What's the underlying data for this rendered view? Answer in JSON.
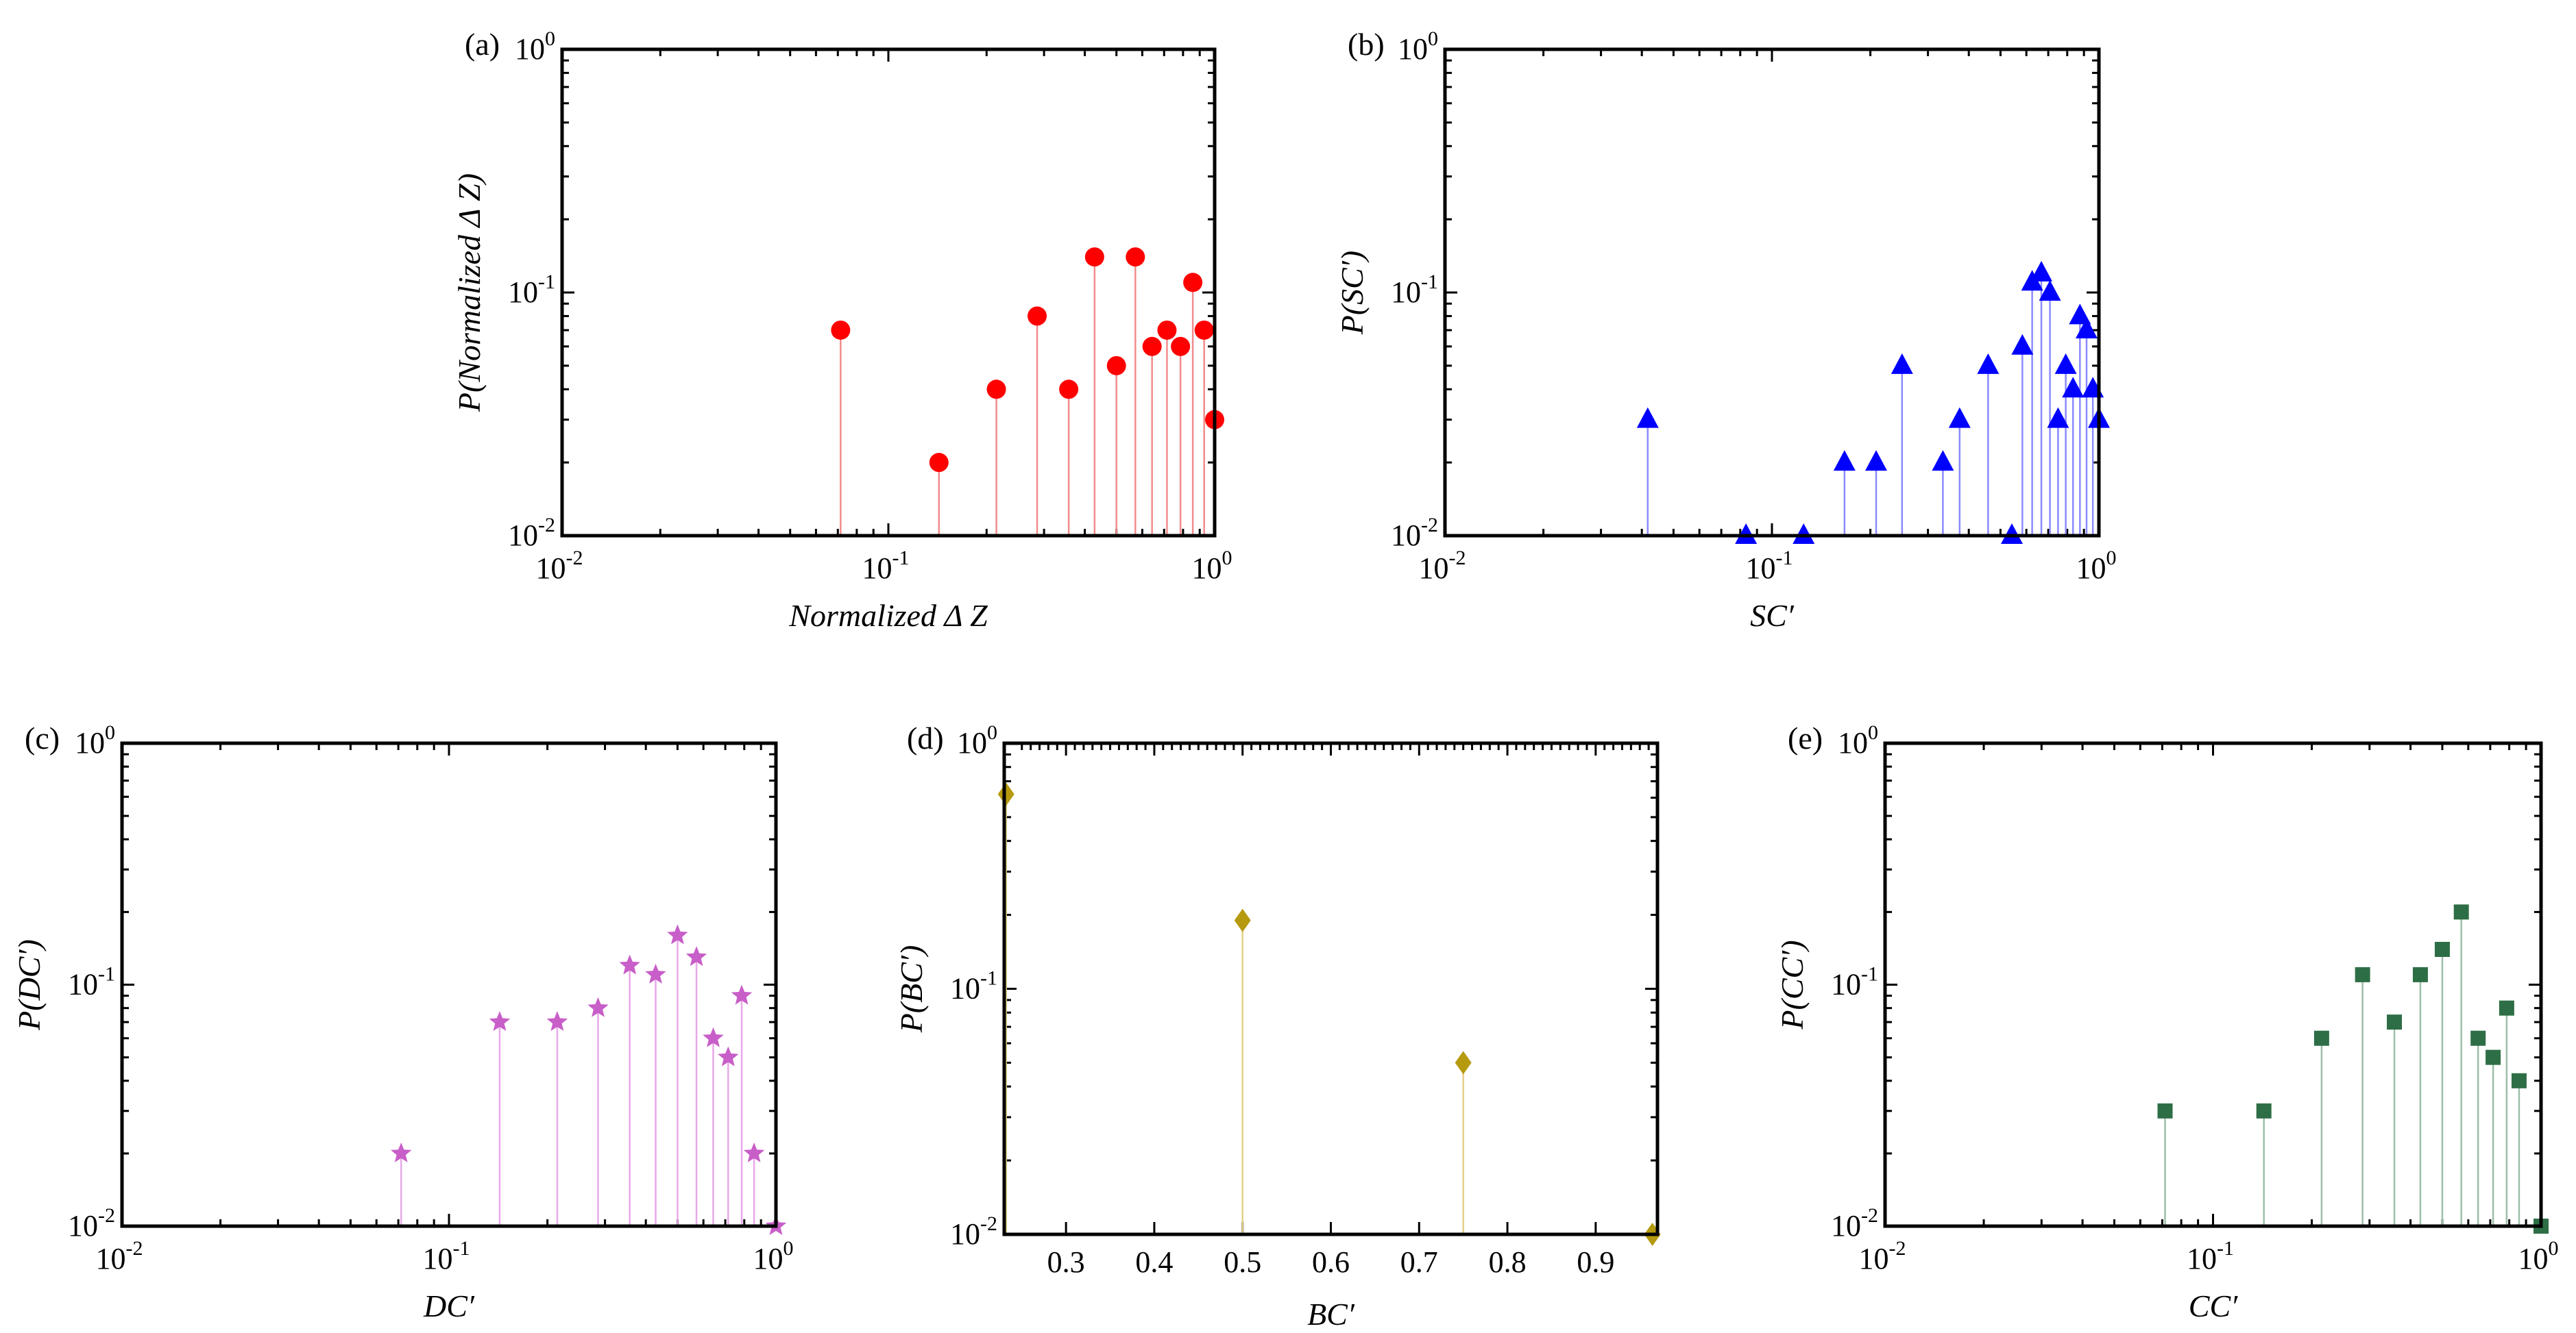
{
  "chart_data": [
    {
      "panel": "(a)",
      "type": "scatter",
      "style": "stem",
      "xscale": "log",
      "yscale": "log",
      "xlim": [
        0.01,
        1
      ],
      "ylim": [
        0.01,
        1
      ],
      "xlabel": "Normalized Δ Z",
      "ylabel": "P(Normalized Δ Z)",
      "marker": "circle",
      "color": "#ff0000",
      "stem_color": "#f28b8b",
      "x_ticks": [
        {
          "base": "10",
          "exp": "-2"
        },
        {
          "base": "10",
          "exp": "-1"
        },
        {
          "base": "10",
          "exp": "0"
        }
      ],
      "y_ticks": [
        {
          "base": "10",
          "exp": "-2"
        },
        {
          "base": "10",
          "exp": "-1"
        },
        {
          "base": "10",
          "exp": "0"
        }
      ],
      "x": [
        0.0714,
        0.1429,
        0.2143,
        0.2857,
        0.3571,
        0.4286,
        0.5,
        0.5714,
        0.6429,
        0.7143,
        0.7857,
        0.8571,
        0.9286,
        1.0
      ],
      "y": [
        0.07,
        0.02,
        0.04,
        0.08,
        0.04,
        0.14,
        0.05,
        0.14,
        0.06,
        0.07,
        0.06,
        0.11,
        0.07,
        0.03
      ]
    },
    {
      "panel": "(b)",
      "type": "scatter",
      "style": "stem",
      "xscale": "log",
      "yscale": "log",
      "xlim": [
        0.01,
        1
      ],
      "ylim": [
        0.01,
        1
      ],
      "xlabel": "SC′",
      "ylabel": "P(SC′)",
      "marker": "triangle",
      "color": "#0000ff",
      "stem_color": "#8a8aff",
      "x_ticks": [
        {
          "base": "10",
          "exp": "-2"
        },
        {
          "base": "10",
          "exp": "-1"
        },
        {
          "base": "10",
          "exp": "0"
        }
      ],
      "y_ticks": [
        {
          "base": "10",
          "exp": "-2"
        },
        {
          "base": "10",
          "exp": "-1"
        },
        {
          "base": "10",
          "exp": "0"
        }
      ],
      "x": [
        0.0417,
        0.0833,
        0.125,
        0.1667,
        0.2083,
        0.25,
        0.3333,
        0.375,
        0.4583,
        0.5417,
        0.5833,
        0.625,
        0.6667,
        0.7083,
        0.75,
        0.7917,
        0.8333,
        0.875,
        0.9167,
        0.9583,
        1.0
      ],
      "y": [
        0.03,
        0.01,
        0.01,
        0.02,
        0.02,
        0.05,
        0.02,
        0.03,
        0.05,
        0.01,
        0.06,
        0.11,
        0.12,
        0.1,
        0.03,
        0.05,
        0.04,
        0.08,
        0.07,
        0.04,
        0.03
      ]
    },
    {
      "panel": "(c)",
      "type": "scatter",
      "style": "stem",
      "xscale": "log",
      "yscale": "log",
      "xlim": [
        0.01,
        1
      ],
      "ylim": [
        0.01,
        1
      ],
      "xlabel": "DC′",
      "ylabel": "P(DC′)",
      "marker": "star",
      "color": "#c85ec8",
      "stem_color": "#e8a8e8",
      "x_ticks": [
        {
          "base": "10",
          "exp": "-2"
        },
        {
          "base": "10",
          "exp": "-1"
        },
        {
          "base": "10",
          "exp": "0"
        }
      ],
      "y_ticks": [
        {
          "base": "10",
          "exp": "-2"
        },
        {
          "base": "10",
          "exp": "-1"
        },
        {
          "base": "10",
          "exp": "0"
        }
      ],
      "x": [
        0.0714,
        0.1429,
        0.2143,
        0.2857,
        0.3571,
        0.4286,
        0.5,
        0.5714,
        0.6429,
        0.7143,
        0.7857,
        0.8571,
        1.0
      ],
      "y": [
        0.02,
        0.07,
        0.07,
        0.08,
        0.12,
        0.11,
        0.16,
        0.13,
        0.06,
        0.05,
        0.09,
        0.02,
        0.01
      ]
    },
    {
      "panel": "(d)",
      "type": "scatter",
      "style": "stem",
      "xscale": "linear",
      "yscale": "log",
      "xlim": [
        0.23,
        0.97
      ],
      "ylim": [
        0.01,
        1
      ],
      "xlabel": "BC′",
      "ylabel": "P(BC′)",
      "marker": "diamond",
      "color": "#b59a10",
      "stem_color": "#e6cf8a",
      "x_ticks": [
        "0.3",
        "0.4",
        "0.5",
        "0.6",
        "0.7",
        "0.8",
        "0.9"
      ],
      "x_tick_values": [
        0.3,
        0.4,
        0.5,
        0.6,
        0.7,
        0.8,
        0.9
      ],
      "y_ticks": [
        {
          "base": "10",
          "exp": "-2"
        },
        {
          "base": "10",
          "exp": "-1"
        },
        {
          "base": "10",
          "exp": "0"
        }
      ],
      "x": [
        0.2321,
        0.5,
        0.75,
        0.9643
      ],
      "y": [
        0.62,
        0.19,
        0.05,
        0.01
      ]
    },
    {
      "panel": "(e)",
      "type": "scatter",
      "style": "stem",
      "xscale": "log",
      "yscale": "log",
      "xlim": [
        0.01,
        1
      ],
      "ylim": [
        0.01,
        1
      ],
      "xlabel": "CC′",
      "ylabel": "P(CC′)",
      "marker": "square",
      "color": "#2e6e46",
      "stem_color": "#9cbfa8",
      "x_ticks": [
        {
          "base": "10",
          "exp": "-2"
        },
        {
          "base": "10",
          "exp": "-1"
        },
        {
          "base": "10",
          "exp": "0"
        }
      ],
      "y_ticks": [
        {
          "base": "10",
          "exp": "-2"
        },
        {
          "base": "10",
          "exp": "-1"
        },
        {
          "base": "10",
          "exp": "0"
        }
      ],
      "x": [
        0.0714,
        0.1429,
        0.2143,
        0.2857,
        0.3571,
        0.4286,
        0.5,
        0.5714,
        0.6429,
        0.7143,
        0.7857,
        0.8571,
        1.0
      ],
      "y": [
        0.03,
        0.03,
        0.06,
        0.11,
        0.07,
        0.11,
        0.14,
        0.2,
        0.06,
        0.05,
        0.08,
        0.04,
        0.01
      ]
    }
  ]
}
